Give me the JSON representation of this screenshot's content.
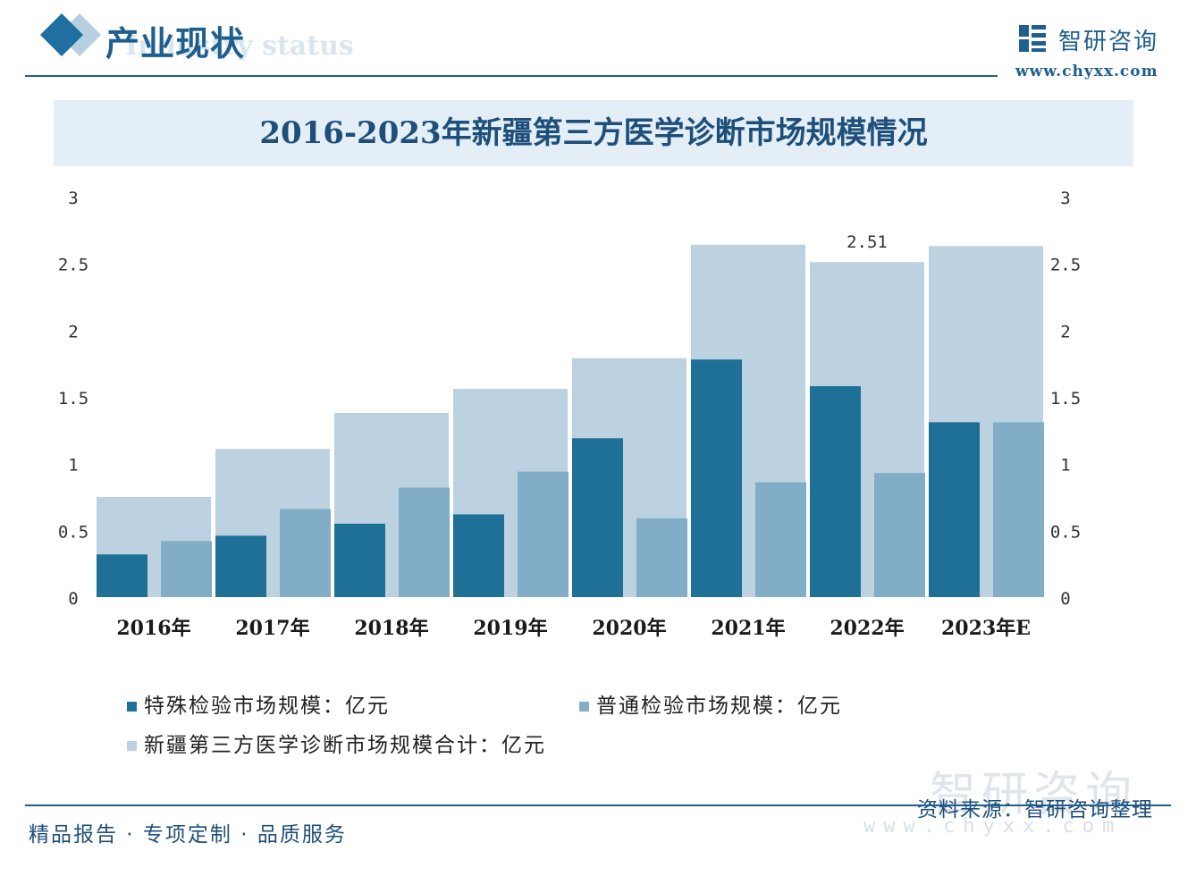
{
  "header": {
    "section_title": "产业现状",
    "section_subtitle": "Industry status",
    "logo_text": "智研咨询",
    "logo_url": "www.chyxx.com"
  },
  "colors": {
    "special": "#1f7096",
    "ordinary": "#81adc6",
    "total": "#bcd2e0",
    "brand": "#1f5f8e"
  },
  "chart_data": {
    "type": "bar",
    "title": "2016-2023年新疆第三方医学诊断市场规模情况",
    "categories": [
      "2016年",
      "2017年",
      "2018年",
      "2019年",
      "2020年",
      "2021年",
      "2022年",
      "2023年E"
    ],
    "series": [
      {
        "name": "特殊检验市场规模：亿元",
        "values": [
          0.32,
          0.46,
          0.55,
          0.62,
          1.19,
          1.78,
          1.58,
          1.31
        ]
      },
      {
        "name": "普通检验市场规模：亿元",
        "values": [
          0.42,
          0.66,
          0.82,
          0.94,
          0.59,
          0.86,
          0.93,
          1.31
        ]
      },
      {
        "name": "新疆第三方医学诊断市场规模合计：亿元",
        "values": [
          0.75,
          1.11,
          1.38,
          1.56,
          1.79,
          2.64,
          2.51,
          2.63
        ]
      }
    ],
    "data_labels": [
      {
        "category": "2022年",
        "series": "新疆第三方医学诊断市场规模合计：亿元",
        "text": "2.51"
      }
    ],
    "y_ticks": [
      "0",
      "0.5",
      "1",
      "1.5",
      "2",
      "2.5",
      "3"
    ],
    "ylim": [
      0,
      3
    ],
    "legend_position": "bottom",
    "grid": false
  },
  "footer": {
    "tagline": "精品报告 · 专项定制 · 品质服务",
    "source": "资料来源：智研咨询整理",
    "watermark_text": "智研咨询",
    "watermark_url": "www.chyxx.com"
  }
}
